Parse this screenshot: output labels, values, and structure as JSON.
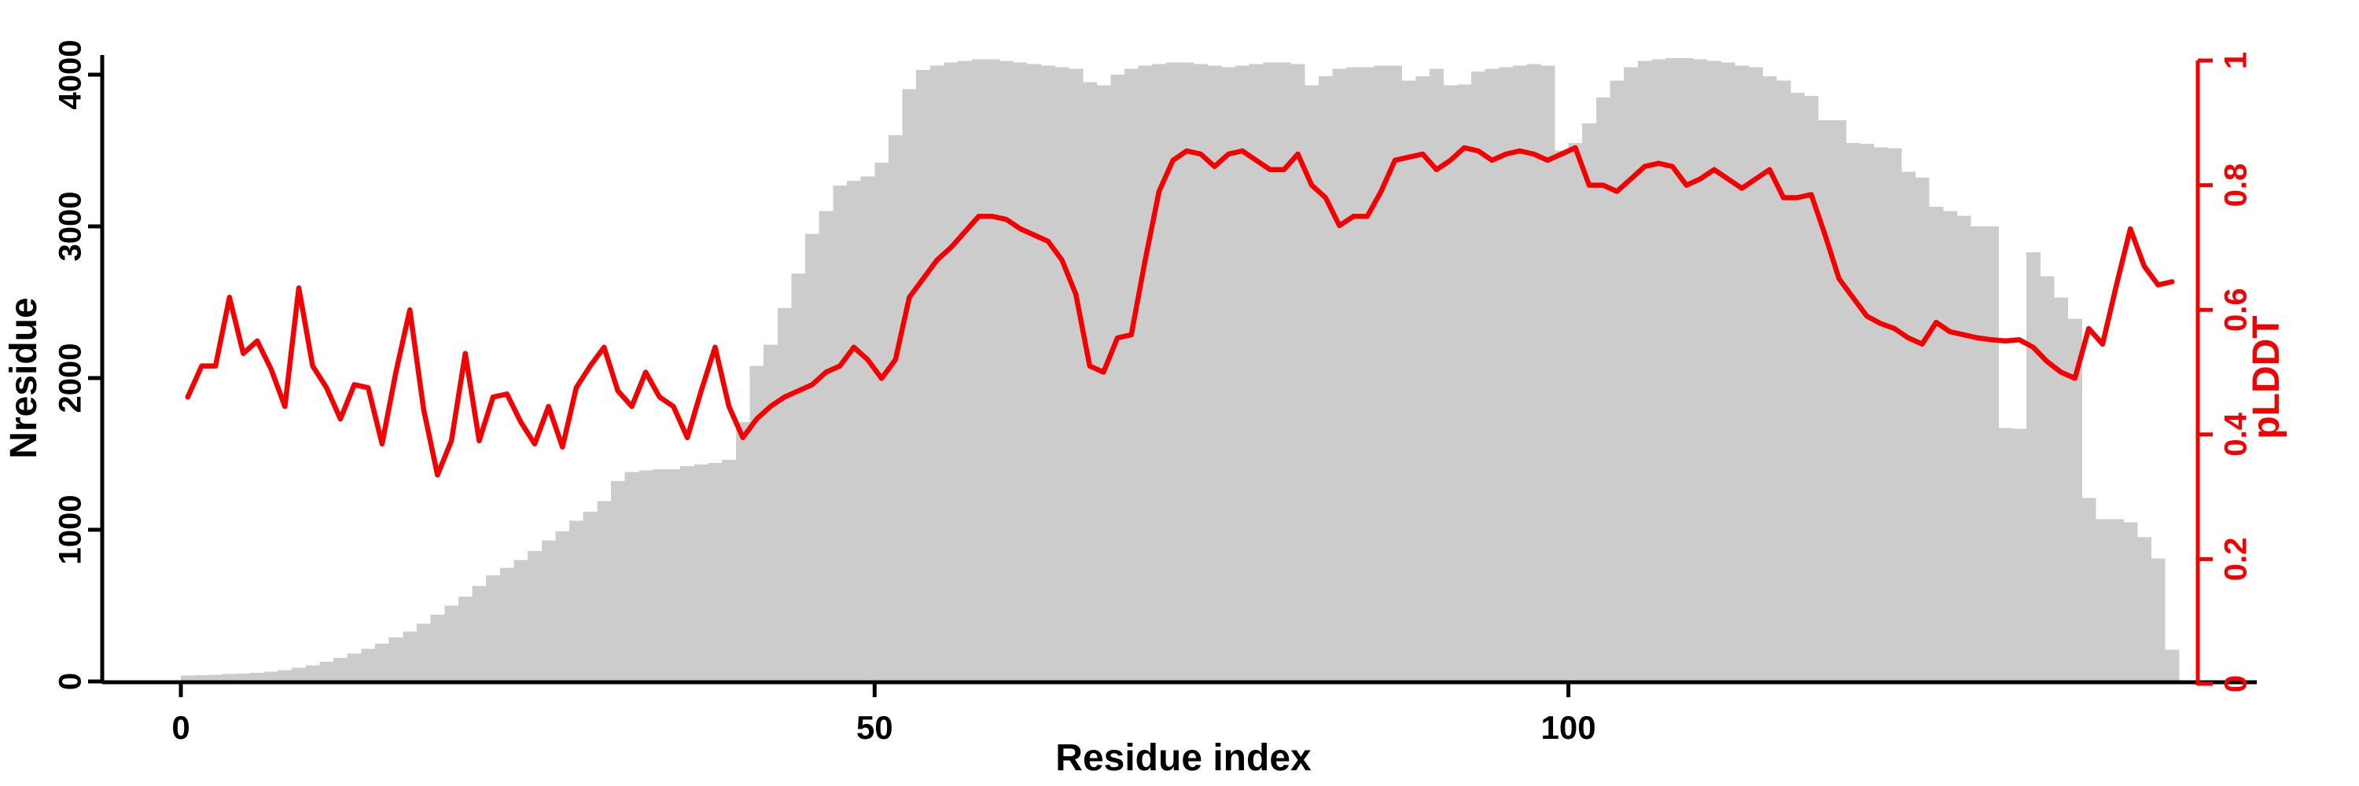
{
  "chart_data": {
    "type": "bar",
    "subtype": "dual-axis bar+line (alignment depth / model confidence per residue)",
    "title": "",
    "xlabel": "Residue index",
    "x_ticks": [
      0,
      50,
      100
    ],
    "x_range": [
      0,
      144
    ],
    "y_left": {
      "label": "Nresidue",
      "ticks": [
        0,
        1000,
        2000,
        3000,
        4000
      ],
      "range": [
        0,
        4280
      ],
      "color": "#000000"
    },
    "y_right": {
      "label": "pLDDT",
      "ticks": [
        0,
        0.2,
        0.4,
        0.6,
        0.8,
        1
      ],
      "tick_labels": [
        "0",
        "0.2",
        "0.4",
        "0.6",
        "0.8",
        "1"
      ],
      "range": [
        0,
        1
      ],
      "color": "#f40000"
    },
    "grid": false,
    "legend": "none",
    "series": [
      {
        "name": "Nresidue",
        "type": "bar",
        "color": "#cccccc",
        "values": [
          40,
          42,
          45,
          48,
          52,
          58,
          66,
          76,
          90,
          105,
          130,
          155,
          185,
          215,
          250,
          290,
          330,
          380,
          440,
          500,
          560,
          630,
          700,
          750,
          800,
          860,
          930,
          990,
          1060,
          1120,
          1190,
          1320,
          1380,
          1390,
          1400,
          1400,
          1420,
          1430,
          1440,
          1460,
          1710,
          2080,
          2220,
          2460,
          2690,
          2950,
          3100,
          3270,
          3300,
          3330,
          3420,
          3600,
          3905,
          4030,
          4060,
          4080,
          4090,
          4100,
          4100,
          4090,
          4080,
          4070,
          4060,
          4050,
          4040,
          3950,
          3930,
          4000,
          4040,
          4060,
          4070,
          4080,
          4080,
          4070,
          4060,
          4050,
          4060,
          4070,
          4080,
          4080,
          4070,
          3930,
          3990,
          4040,
          4050,
          4050,
          4060,
          4060,
          3960,
          3990,
          4040,
          3930,
          3935,
          4020,
          4040,
          4050,
          4060,
          4070,
          4060,
          3500,
          3550,
          3680,
          3850,
          3960,
          4050,
          4090,
          4100,
          4110,
          4110,
          4100,
          4090,
          4080,
          4060,
          4050,
          3990,
          3960,
          3880,
          3860,
          3700,
          3700,
          3550,
          3545,
          3520,
          3515,
          3360,
          3320,
          3130,
          3100,
          3070,
          3000,
          3000,
          1670,
          1665,
          2830,
          2670,
          2530,
          2390,
          1210,
          1070,
          1070,
          1050,
          950,
          810,
          210
        ]
      },
      {
        "name": "pLDDT",
        "type": "line",
        "color": "#f40000",
        "values": [
          0.46,
          0.51,
          0.51,
          0.62,
          0.53,
          0.55,
          0.505,
          0.445,
          0.635,
          0.51,
          0.475,
          0.425,
          0.48,
          0.475,
          0.385,
          0.5,
          0.6,
          0.44,
          0.335,
          0.39,
          0.53,
          0.39,
          0.46,
          0.465,
          0.42,
          0.385,
          0.445,
          0.38,
          0.475,
          0.51,
          0.54,
          0.47,
          0.445,
          0.5,
          0.46,
          0.445,
          0.395,
          0.47,
          0.54,
          0.445,
          0.395,
          0.425,
          0.445,
          0.46,
          0.47,
          0.48,
          0.5,
          0.51,
          0.54,
          0.52,
          0.49,
          0.52,
          0.62,
          0.65,
          0.68,
          0.7,
          0.725,
          0.75,
          0.75,
          0.745,
          0.73,
          0.72,
          0.71,
          0.68,
          0.625,
          0.51,
          0.5,
          0.555,
          0.56,
          0.68,
          0.79,
          0.84,
          0.855,
          0.85,
          0.83,
          0.85,
          0.855,
          0.84,
          0.825,
          0.825,
          0.85,
          0.8,
          0.78,
          0.735,
          0.75,
          0.75,
          0.79,
          0.84,
          0.845,
          0.85,
          0.825,
          0.84,
          0.86,
          0.855,
          0.84,
          0.85,
          0.855,
          0.85,
          0.84,
          0.85,
          0.86,
          0.8,
          0.8,
          0.79,
          0.81,
          0.83,
          0.835,
          0.83,
          0.8,
          0.81,
          0.825,
          0.81,
          0.795,
          0.81,
          0.825,
          0.78,
          0.78,
          0.785,
          0.72,
          0.65,
          0.62,
          0.59,
          0.578,
          0.57,
          0.555,
          0.545,
          0.58,
          0.565,
          0.56,
          0.555,
          0.552,
          0.55,
          0.552,
          0.54,
          0.517,
          0.5,
          0.49,
          0.57,
          0.545,
          0.64,
          0.73,
          0.67,
          0.64,
          0.645
        ]
      }
    ],
    "background": "#ffffff",
    "axis_color": "#000000"
  }
}
